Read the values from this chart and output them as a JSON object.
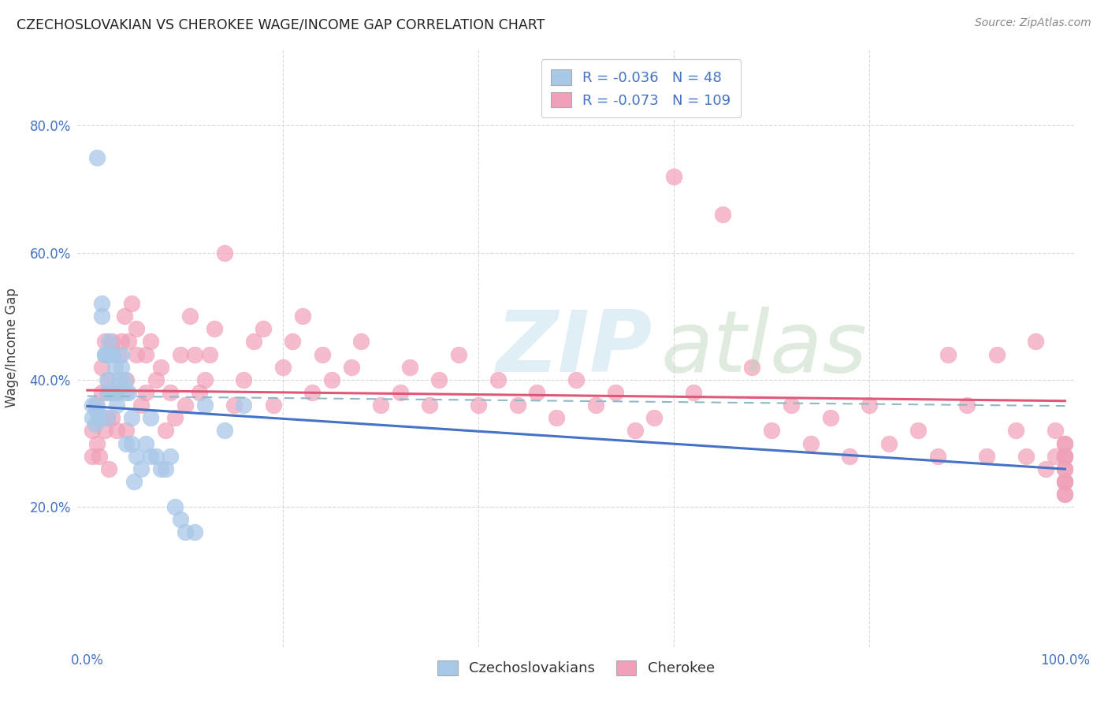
{
  "title": "CZECHOSLOVAKIAN VS CHEROKEE WAGE/INCOME GAP CORRELATION CHART",
  "source": "Source: ZipAtlas.com",
  "ylabel": "Wage/Income Gap",
  "color_czech": "#a8c8e8",
  "color_cherokee": "#f0a0b8",
  "line_color_czech": "#4472c4",
  "line_color_cherokee": "#e05878",
  "line_color_dashed": "#90b8c8",
  "background_color": "#ffffff",
  "grid_color": "#d8d8d8",
  "xlim": [
    -0.01,
    1.01
  ],
  "ylim": [
    -0.02,
    0.92
  ],
  "xticks": [
    0.0,
    0.2,
    0.4,
    0.6,
    0.8,
    1.0
  ],
  "yticks": [
    0.2,
    0.4,
    0.6,
    0.8
  ],
  "ytick_labels": [
    "20.0%",
    "40.0%",
    "60.0%",
    "80.0%"
  ],
  "legend_r1": "-0.036",
  "legend_n1": "48",
  "legend_r2": "-0.073",
  "legend_n2": "109",
  "czech_x": [
    0.005,
    0.005,
    0.008,
    0.01,
    0.01,
    0.01,
    0.012,
    0.015,
    0.015,
    0.018,
    0.018,
    0.02,
    0.02,
    0.02,
    0.022,
    0.022,
    0.025,
    0.025,
    0.028,
    0.028,
    0.03,
    0.03,
    0.032,
    0.035,
    0.035,
    0.038,
    0.04,
    0.04,
    0.042,
    0.045,
    0.045,
    0.048,
    0.05,
    0.055,
    0.06,
    0.065,
    0.065,
    0.07,
    0.075,
    0.08,
    0.085,
    0.09,
    0.095,
    0.1,
    0.11,
    0.12,
    0.14,
    0.16
  ],
  "czech_y": [
    0.34,
    0.36,
    0.33,
    0.75,
    0.35,
    0.36,
    0.34,
    0.52,
    0.5,
    0.44,
    0.44,
    0.34,
    0.38,
    0.4,
    0.44,
    0.46,
    0.38,
    0.44,
    0.38,
    0.42,
    0.36,
    0.38,
    0.4,
    0.42,
    0.44,
    0.4,
    0.3,
    0.38,
    0.38,
    0.3,
    0.34,
    0.24,
    0.28,
    0.26,
    0.3,
    0.34,
    0.28,
    0.28,
    0.26,
    0.26,
    0.28,
    0.2,
    0.18,
    0.16,
    0.16,
    0.36,
    0.32,
    0.36
  ],
  "cherokee_x": [
    0.005,
    0.005,
    0.008,
    0.01,
    0.012,
    0.015,
    0.015,
    0.018,
    0.018,
    0.02,
    0.02,
    0.022,
    0.022,
    0.025,
    0.025,
    0.028,
    0.03,
    0.03,
    0.032,
    0.035,
    0.038,
    0.04,
    0.04,
    0.042,
    0.045,
    0.05,
    0.05,
    0.055,
    0.06,
    0.06,
    0.065,
    0.07,
    0.075,
    0.08,
    0.085,
    0.09,
    0.095,
    0.1,
    0.105,
    0.11,
    0.115,
    0.12,
    0.125,
    0.13,
    0.14,
    0.15,
    0.16,
    0.17,
    0.18,
    0.19,
    0.2,
    0.21,
    0.22,
    0.23,
    0.24,
    0.25,
    0.27,
    0.28,
    0.3,
    0.32,
    0.33,
    0.35,
    0.36,
    0.38,
    0.4,
    0.42,
    0.44,
    0.46,
    0.48,
    0.5,
    0.52,
    0.54,
    0.56,
    0.58,
    0.6,
    0.62,
    0.65,
    0.68,
    0.7,
    0.72,
    0.74,
    0.76,
    0.78,
    0.8,
    0.82,
    0.85,
    0.87,
    0.88,
    0.9,
    0.92,
    0.93,
    0.95,
    0.96,
    0.97,
    0.98,
    0.99,
    0.99,
    1.0,
    1.0,
    1.0,
    1.0,
    1.0,
    1.0,
    1.0,
    1.0,
    1.0,
    1.0,
    1.0,
    1.0
  ],
  "cherokee_y": [
    0.28,
    0.32,
    0.36,
    0.3,
    0.28,
    0.38,
    0.42,
    0.32,
    0.46,
    0.34,
    0.38,
    0.26,
    0.4,
    0.34,
    0.46,
    0.38,
    0.32,
    0.38,
    0.44,
    0.46,
    0.5,
    0.32,
    0.4,
    0.46,
    0.52,
    0.44,
    0.48,
    0.36,
    0.38,
    0.44,
    0.46,
    0.4,
    0.42,
    0.32,
    0.38,
    0.34,
    0.44,
    0.36,
    0.5,
    0.44,
    0.38,
    0.4,
    0.44,
    0.48,
    0.6,
    0.36,
    0.4,
    0.46,
    0.48,
    0.36,
    0.42,
    0.46,
    0.5,
    0.38,
    0.44,
    0.4,
    0.42,
    0.46,
    0.36,
    0.38,
    0.42,
    0.36,
    0.4,
    0.44,
    0.36,
    0.4,
    0.36,
    0.38,
    0.34,
    0.4,
    0.36,
    0.38,
    0.32,
    0.34,
    0.72,
    0.38,
    0.66,
    0.42,
    0.32,
    0.36,
    0.3,
    0.34,
    0.28,
    0.36,
    0.3,
    0.32,
    0.28,
    0.44,
    0.36,
    0.28,
    0.44,
    0.32,
    0.28,
    0.46,
    0.26,
    0.28,
    0.32,
    0.28,
    0.24,
    0.22,
    0.28,
    0.3,
    0.24,
    0.26,
    0.22,
    0.3,
    0.24,
    0.26,
    0.28
  ]
}
